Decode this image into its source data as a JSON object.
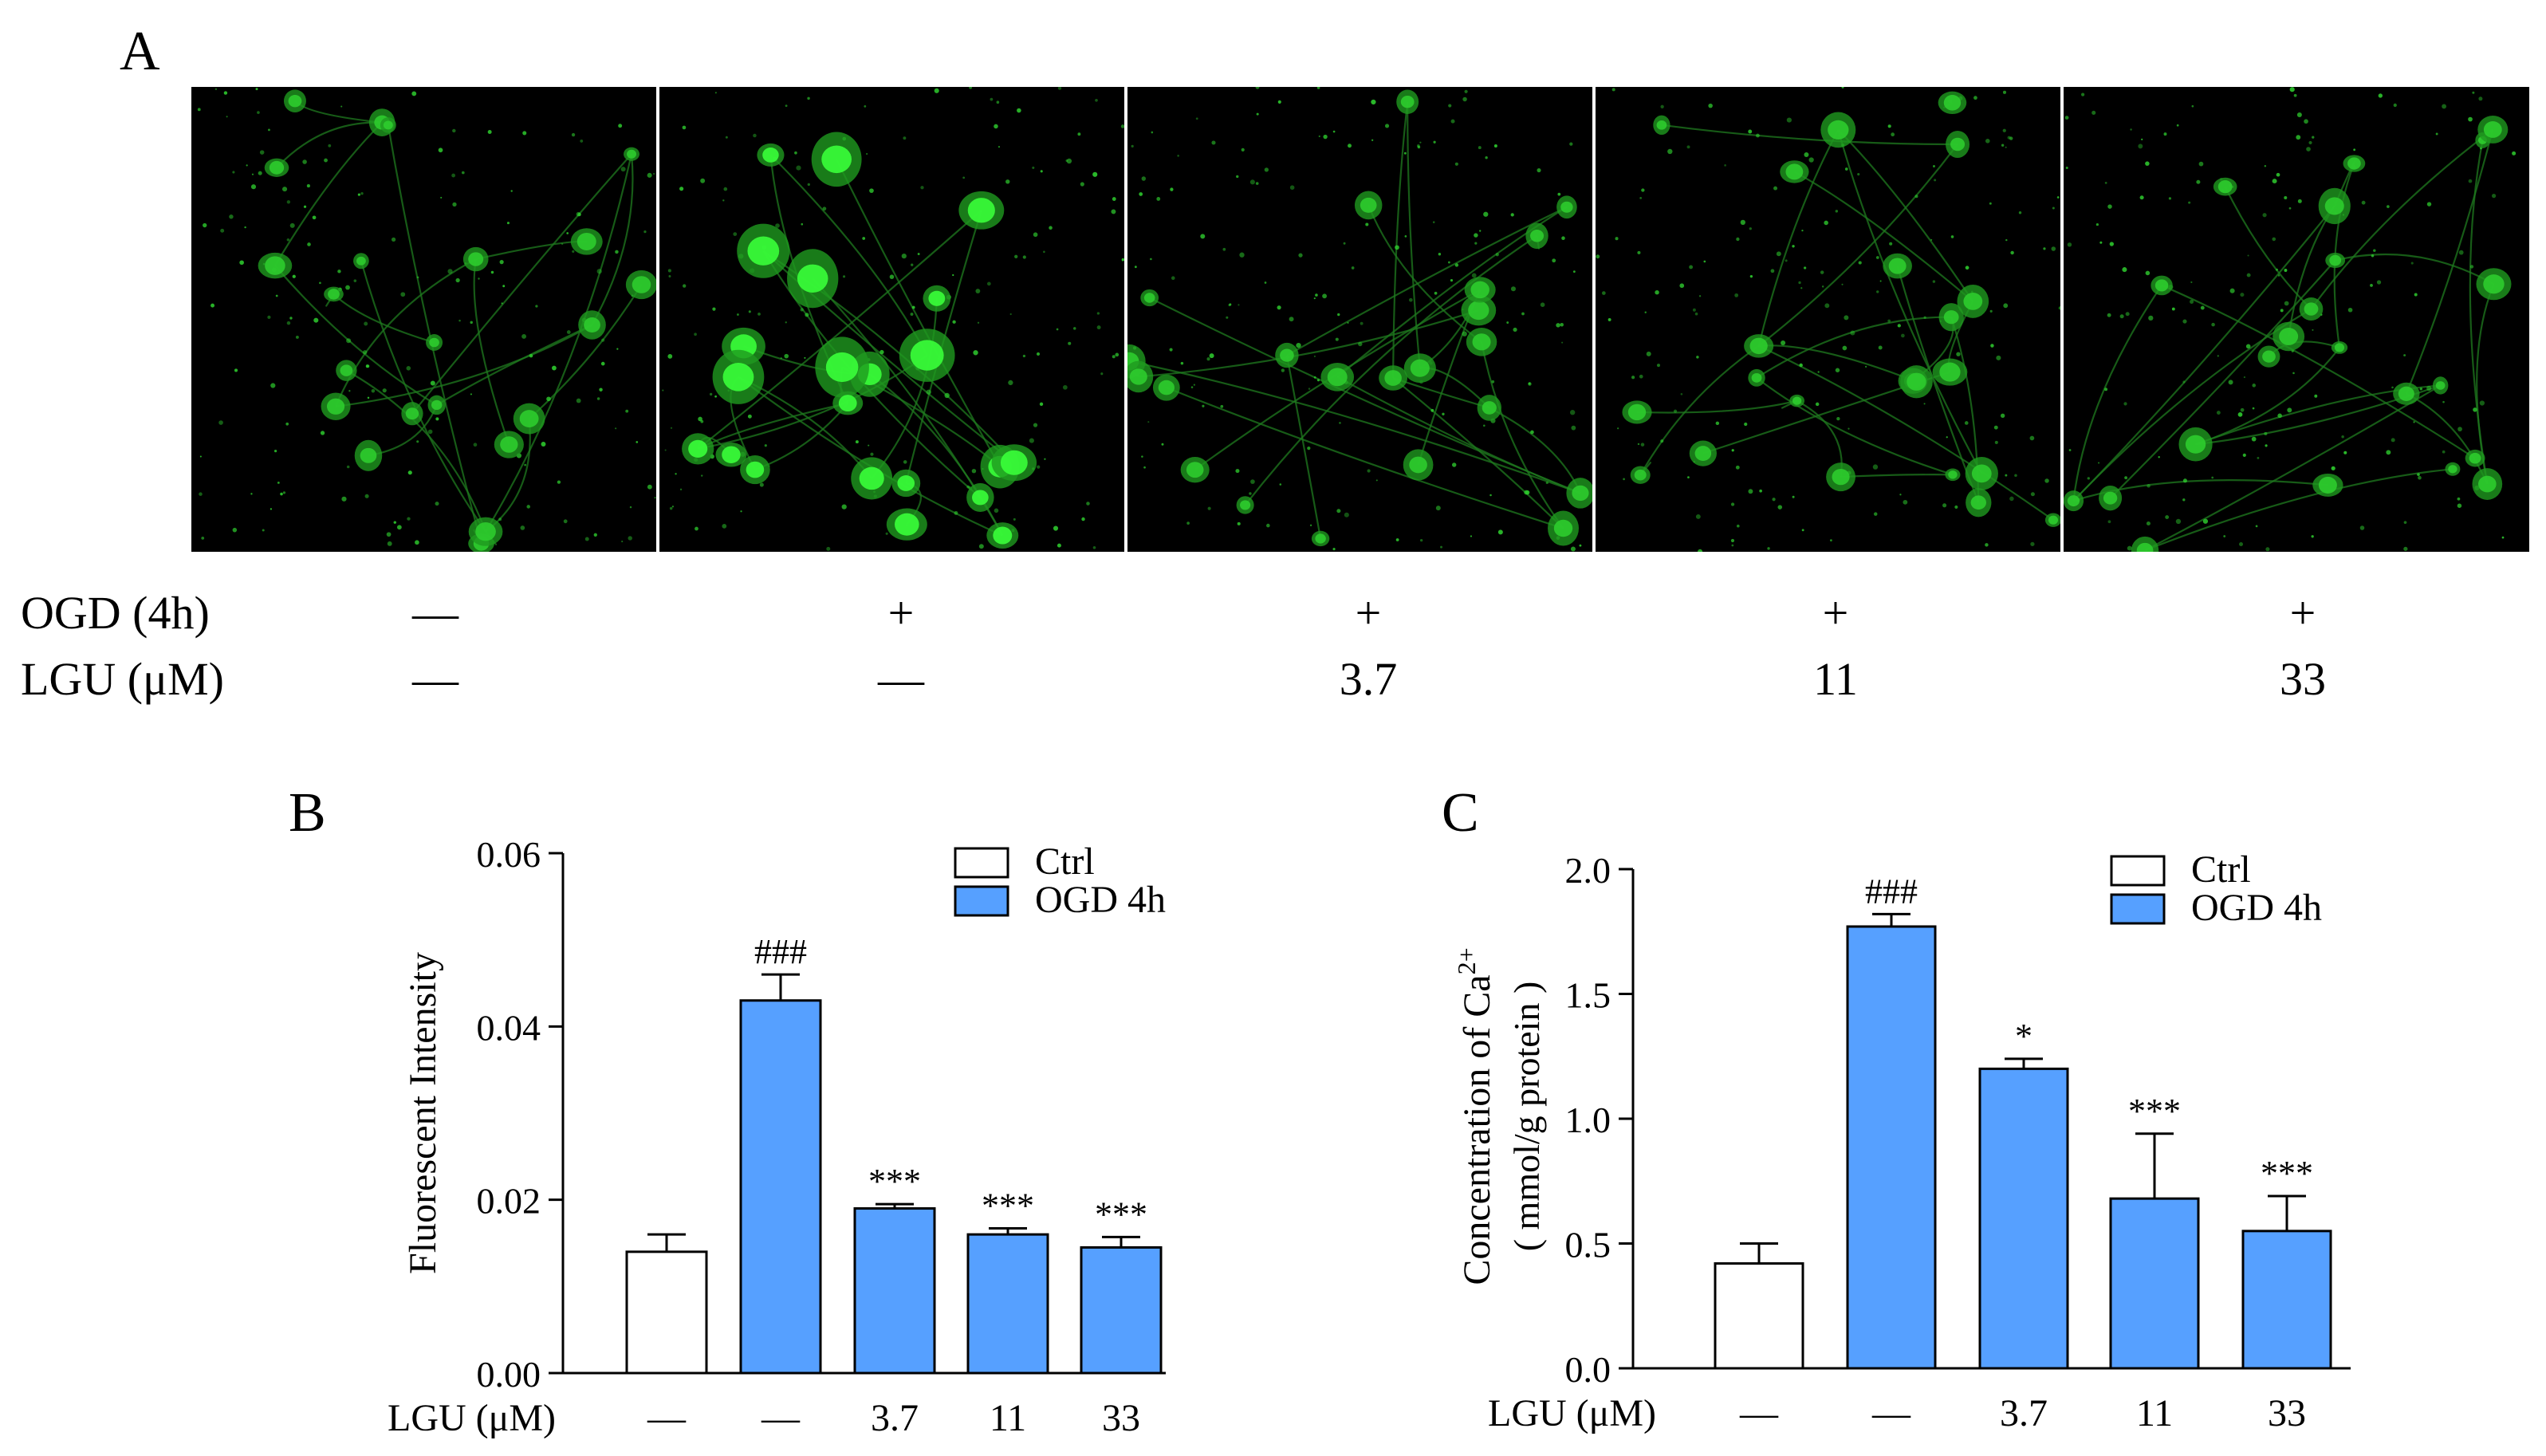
{
  "panelA": {
    "letter": "A",
    "images": [
      {
        "condition": "control",
        "accent": "#2ecc2e"
      },
      {
        "condition": "ogd",
        "accent": "#3aff3a"
      },
      {
        "condition": "lgu-3.7",
        "accent": "#2ecc2e"
      },
      {
        "condition": "lgu-11",
        "accent": "#2ecc2e"
      },
      {
        "condition": "lgu-33",
        "accent": "#2ecc2e"
      }
    ],
    "rows": [
      {
        "label": "OGD (4h)",
        "cells": [
          "—",
          "+",
          "+",
          "+",
          "+"
        ]
      },
      {
        "label": "LGU (μM)",
        "cells": [
          "—",
          "—",
          "3.7",
          "11",
          "33"
        ]
      }
    ]
  },
  "chart_data": [
    {
      "panel": "B",
      "type": "bar",
      "ylabel": "Fluorescent  Intensity",
      "xlabel": "LGU (μM)",
      "categories": [
        "—",
        "—",
        "3.7",
        "11",
        "33"
      ],
      "values": [
        0.014,
        0.043,
        0.019,
        0.016,
        0.0145
      ],
      "errors": [
        0.002,
        0.003,
        0.0005,
        0.0007,
        0.0012
      ],
      "groups": [
        "Ctrl",
        "OGD 4h",
        "OGD 4h",
        "OGD 4h",
        "OGD 4h"
      ],
      "annotations": [
        "",
        "###",
        "***",
        "***",
        "***"
      ],
      "ylim": [
        0,
        0.06
      ],
      "yticks": [
        0,
        0.02,
        0.04,
        0.06
      ],
      "ytick_labels": [
        "0.00",
        "0.02",
        "0.04",
        "0.06"
      ],
      "legend": [
        {
          "name": "Ctrl",
          "color": "#ffffff"
        },
        {
          "name": "OGD 4h",
          "color": "#56a0ff"
        }
      ],
      "legend_position": "top-right"
    },
    {
      "panel": "C",
      "type": "bar",
      "ylabel_line1": "Concentration of Ca",
      "ylabel_sup": "2+",
      "ylabel_line2": "( mmol/g protein )",
      "xlabel": "LGU (μM)",
      "categories": [
        "—",
        "—",
        "3.7",
        "11",
        "33"
      ],
      "values": [
        0.42,
        1.77,
        1.2,
        0.68,
        0.55
      ],
      "errors": [
        0.08,
        0.05,
        0.04,
        0.26,
        0.14
      ],
      "groups": [
        "Ctrl",
        "OGD 4h",
        "OGD 4h",
        "OGD 4h",
        "OGD 4h"
      ],
      "annotations": [
        "",
        "###",
        "*",
        "***",
        "***"
      ],
      "ylim": [
        0,
        2.0
      ],
      "yticks": [
        0,
        0.5,
        1.0,
        1.5,
        2.0
      ],
      "ytick_labels": [
        "0.0",
        "0.5",
        "1.0",
        "1.5",
        "2.0"
      ],
      "legend": [
        {
          "name": "Ctrl",
          "color": "#ffffff"
        },
        {
          "name": "OGD 4h",
          "color": "#56a0ff"
        }
      ],
      "legend_position": "top-right"
    }
  ],
  "colors": {
    "bar_fill": "#56a0ff",
    "ctrl_fill": "#ffffff",
    "stroke": "#000000",
    "fluorescence": "#2ecc2e"
  }
}
